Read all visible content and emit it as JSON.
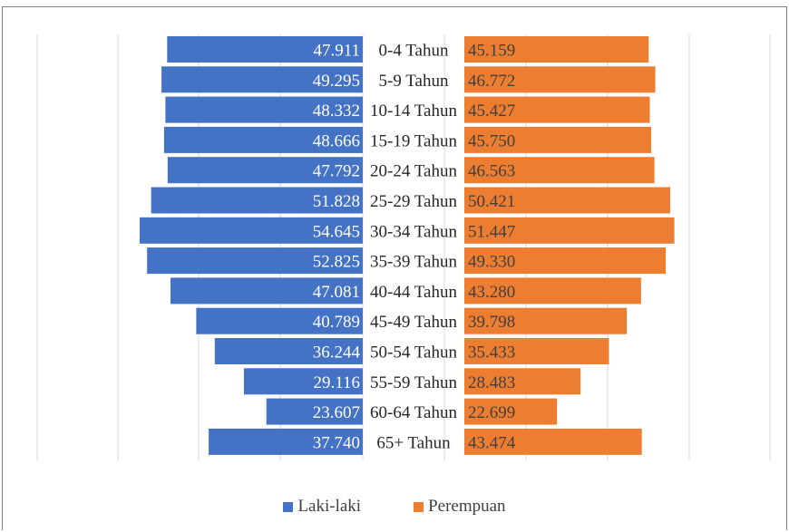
{
  "chart_data": {
    "type": "bar",
    "orientation": "horizontal-population-pyramid",
    "categories": [
      "0-4 Tahun",
      "5-9 Tahun",
      "10-14 Tahun",
      "15-19 Tahun",
      "20-24 Tahun",
      "25-29 Tahun",
      "30-34 Tahun",
      "35-39 Tahun",
      "40-44 Tahun",
      "45-49 Tahun",
      "50-54 Tahun",
      "55-59 Tahun",
      "60-64 Tahun",
      "65+ Tahun"
    ],
    "series": [
      {
        "name": "Laki-laki",
        "color": "#4472c4",
        "values": [
          47911,
          49295,
          48332,
          48666,
          47792,
          51828,
          54645,
          52825,
          47081,
          40789,
          36244,
          29116,
          23607,
          37740
        ],
        "labels": [
          "47.911",
          "49.295",
          "48.332",
          "48.666",
          "47.792",
          "51.828",
          "54.645",
          "52.825",
          "47.081",
          "40.789",
          "36.244",
          "29.116",
          "23.607",
          "37.740"
        ]
      },
      {
        "name": "Perempuan",
        "color": "#ed7d31",
        "values": [
          45159,
          46772,
          45427,
          45750,
          46563,
          50421,
          51447,
          49330,
          43280,
          39798,
          35433,
          28483,
          22699,
          43474
        ],
        "labels": [
          "45.159",
          "46.772",
          "45.427",
          "45.750",
          "46.563",
          "50.421",
          "51.447",
          "49.330",
          "43.280",
          "39.798",
          "35.433",
          "28.483",
          "22.699",
          "43.474"
        ]
      }
    ],
    "title": "",
    "legend_position": "bottom",
    "grid": true
  }
}
